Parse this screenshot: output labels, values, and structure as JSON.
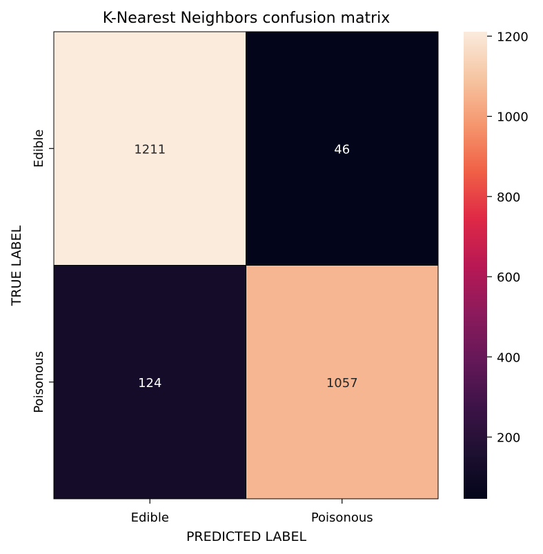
{
  "chart_data": {
    "type": "heatmap",
    "title": "K-Nearest Neighbors confusion matrix",
    "xlabel": "PREDICTED LABEL",
    "ylabel": "TRUE LABEL",
    "x_categories": [
      "Edible",
      "Poisonous"
    ],
    "y_categories": [
      "Edible",
      "Poisonous"
    ],
    "values": [
      [
        1211,
        46
      ],
      [
        124,
        1057
      ]
    ],
    "cell_labels": [
      [
        "1211",
        "46"
      ],
      [
        "124",
        "1057"
      ]
    ],
    "colormap": "rocket",
    "color_range": [
      46,
      1211
    ],
    "colorbar_ticks": [
      200,
      400,
      600,
      800,
      1000,
      1200
    ],
    "colorbar_tick_labels": [
      "200",
      "400",
      "600",
      "800",
      "1000",
      "1200"
    ]
  }
}
